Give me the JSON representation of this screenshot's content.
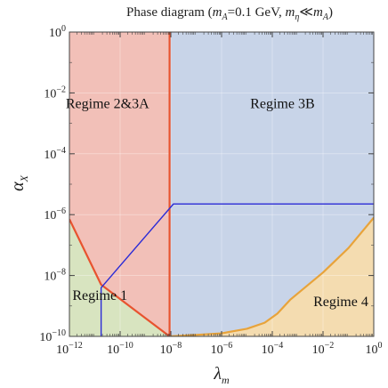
{
  "chart_data": {
    "type": "area",
    "title": {
      "prefix": "Phase diagram (",
      "mA_sym": "m",
      "mA_sub": "A",
      "mA_val": "=0.1 GeV, ",
      "meta_sym": "m",
      "meta_sub": "η",
      "rel": "≪",
      "meta_rhs_sym": "m",
      "meta_rhs_sub": "A",
      "suffix": ")"
    },
    "xlabel": {
      "symbol": "λ",
      "sub": "m"
    },
    "ylabel": {
      "symbol": "α",
      "sub": "X"
    },
    "x_scale": "log",
    "y_scale": "log",
    "xlim_exp": [
      -12,
      0
    ],
    "ylim_exp": [
      -10,
      0
    ],
    "x_ticks": [
      {
        "exp": -12,
        "base": "10",
        "label": "−12"
      },
      {
        "exp": -10,
        "base": "10",
        "label": "−10"
      },
      {
        "exp": -8,
        "base": "10",
        "label": "−8"
      },
      {
        "exp": -6,
        "base": "10",
        "label": "−6"
      },
      {
        "exp": -4,
        "base": "10",
        "label": "−4"
      },
      {
        "exp": -2,
        "base": "10",
        "label": "−2"
      },
      {
        "exp": 0,
        "base": "10",
        "label": "0"
      }
    ],
    "y_ticks": [
      {
        "exp": 0,
        "base": "10",
        "label": "0"
      },
      {
        "exp": -2,
        "base": "10",
        "label": "−2"
      },
      {
        "exp": -4,
        "base": "10",
        "label": "−4"
      },
      {
        "exp": -6,
        "base": "10",
        "label": "−6"
      },
      {
        "exp": -8,
        "base": "10",
        "label": "−8"
      },
      {
        "exp": -10,
        "base": "10",
        "label": "−10"
      }
    ],
    "regions": [
      {
        "name": "Regime 2&3A",
        "color": "#f2c0b8"
      },
      {
        "name": "Regime 3B",
        "color": "#c8d4e8"
      },
      {
        "name": "Regime 1",
        "color": "#d8e4c0"
      },
      {
        "name": "Regime 4",
        "color": "#f4dcb0"
      }
    ],
    "boundaries": [
      {
        "name": "orange-red",
        "color": "#e8532f",
        "points_log10": [
          [
            -12,
            -6.15
          ],
          [
            -10.75,
            -8.3
          ],
          [
            -8.05,
            -10
          ],
          [
            -8.05,
            0
          ]
        ]
      },
      {
        "name": "orange",
        "color": "#e8a33a",
        "points_log10": [
          [
            -8.05,
            -10
          ],
          [
            -7,
            -9.95
          ],
          [
            -6,
            -9.9
          ],
          [
            -5,
            -9.75
          ],
          [
            -4.3,
            -9.55
          ],
          [
            -3.8,
            -9.25
          ],
          [
            -3.3,
            -8.8
          ],
          [
            -2,
            -7.9
          ],
          [
            -1,
            -7.1
          ],
          [
            0,
            -6.1
          ]
        ]
      },
      {
        "name": "blue",
        "color": "#2b2bd6",
        "points_log10": [
          [
            -10.75,
            -10
          ],
          [
            -10.75,
            -8.4
          ],
          [
            -7.9,
            -5.65
          ],
          [
            0,
            -5.65
          ]
        ]
      }
    ]
  }
}
